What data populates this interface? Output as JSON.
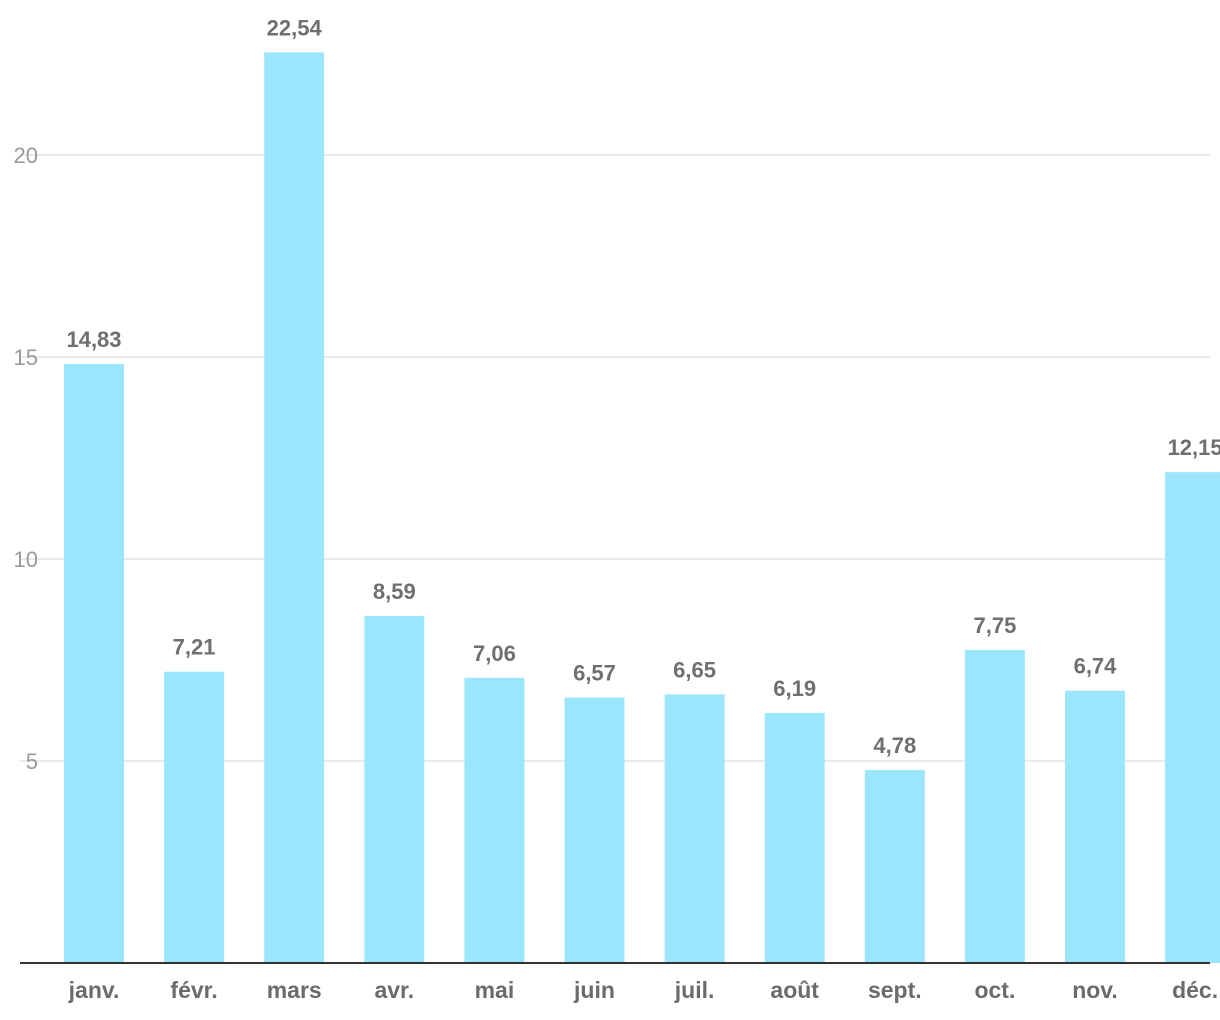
{
  "chart_data": {
    "type": "bar",
    "title": "",
    "xlabel": "",
    "ylabel": "",
    "categories": [
      "janv.",
      "févr.",
      "mars",
      "avr.",
      "mai",
      "juin",
      "juil.",
      "août",
      "sept.",
      "oct.",
      "nov.",
      "déc."
    ],
    "values": [
      14.83,
      7.21,
      22.54,
      8.59,
      7.06,
      6.57,
      6.65,
      6.19,
      4.78,
      7.75,
      6.74,
      12.15
    ],
    "data_labels": [
      "14,83",
      "7,21",
      "22,54",
      "8,59",
      "7,06",
      "6,57",
      "6,65",
      "6,19",
      "4,78",
      "7,75",
      "6,74",
      "12,15"
    ],
    "yticks": [
      5,
      10,
      15,
      20
    ],
    "ylim": [
      0,
      23.85
    ],
    "grid": true,
    "legend": "none",
    "colors": {
      "bar": "#9ce6fd",
      "grid": "#e3e3e3",
      "axis": "#333333"
    }
  }
}
